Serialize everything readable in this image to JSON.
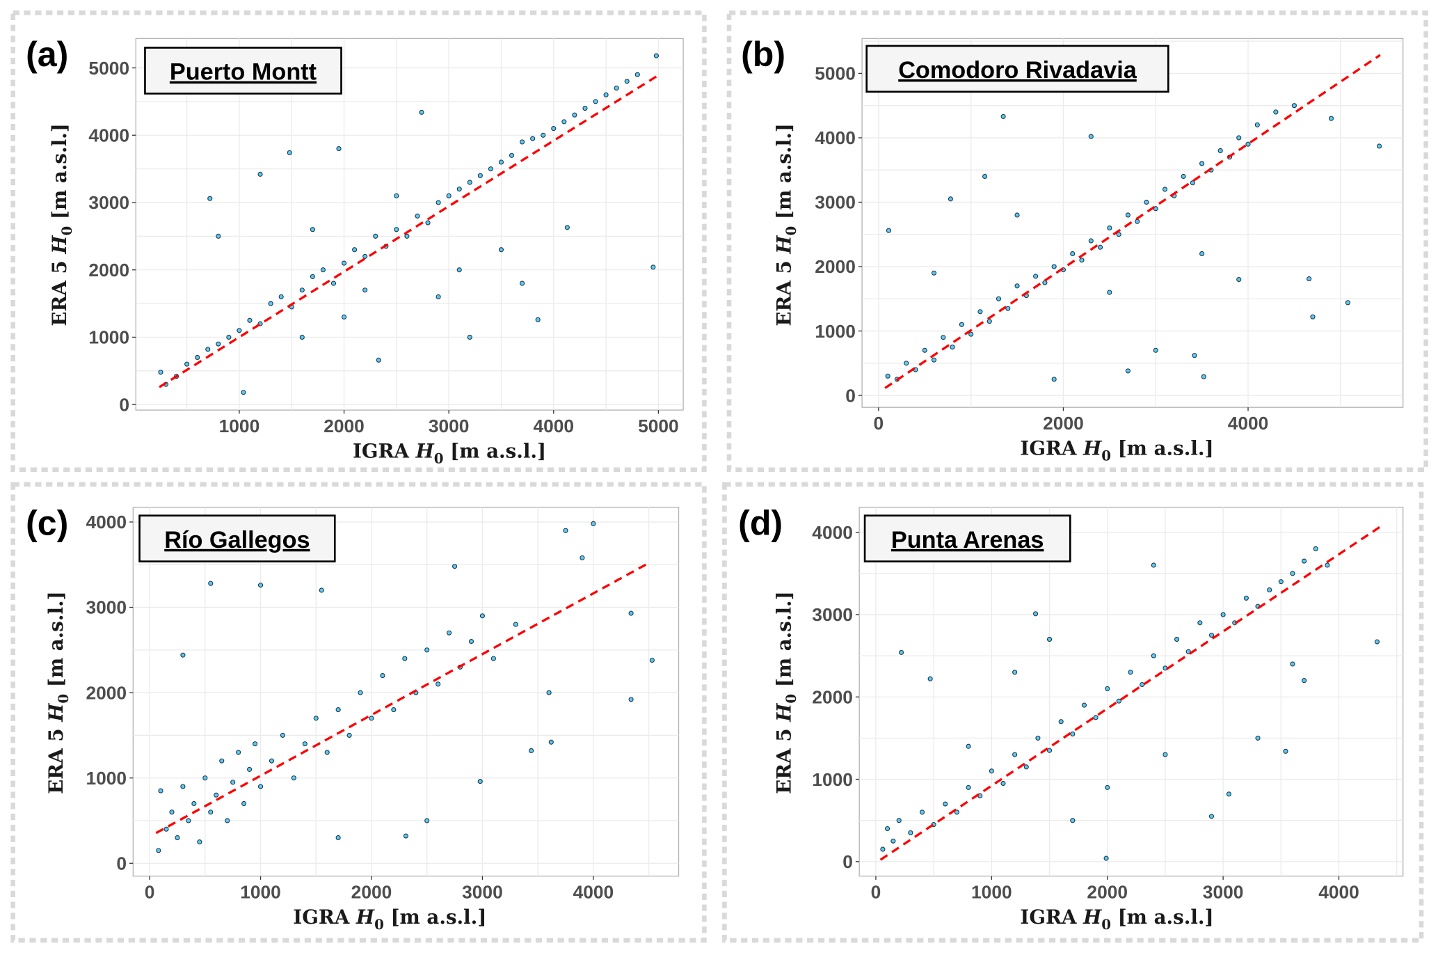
{
  "chart_data": [
    {
      "type": "scatter",
      "panel_label": "(a)",
      "title": "Puerto Montt",
      "xlabel": {
        "prefix": "IGRA ",
        "var": "H",
        "sub": "0",
        "unit": " [m a.s.l.]"
      },
      "ylabel": {
        "prefix": "ERA 5 ",
        "var": "H",
        "sub": "0",
        "unit": " [m a.s.l.]"
      },
      "xlim": [
        13,
        5237
      ],
      "ylim": [
        -82,
        5436
      ],
      "xticks": [
        1000,
        2000,
        3000,
        4000,
        5000
      ],
      "yticks": [
        0,
        1000,
        2000,
        3000,
        4000,
        5000
      ],
      "grid": true,
      "fit_line": {
        "x": [
          237,
          5000
        ],
        "y": [
          259,
          4891
        ],
        "color": "#ff0000",
        "style": "dashed"
      },
      "points": [
        [
          250,
          480
        ],
        [
          300,
          300
        ],
        [
          400,
          420
        ],
        [
          500,
          600
        ],
        [
          600,
          700
        ],
        [
          700,
          820
        ],
        [
          800,
          900
        ],
        [
          900,
          1000
        ],
        [
          1000,
          1100
        ],
        [
          1100,
          1250
        ],
        [
          1200,
          1200
        ],
        [
          1300,
          1500
        ],
        [
          1400,
          1600
        ],
        [
          1500,
          1450
        ],
        [
          1600,
          1700
        ],
        [
          1700,
          1900
        ],
        [
          1800,
          2000
        ],
        [
          1900,
          1800
        ],
        [
          2000,
          2100
        ],
        [
          2100,
          2300
        ],
        [
          2200,
          2200
        ],
        [
          2300,
          2500
        ],
        [
          2400,
          2350
        ],
        [
          2500,
          2600
        ],
        [
          2600,
          2500
        ],
        [
          2700,
          2800
        ],
        [
          2800,
          2700
        ],
        [
          2900,
          3000
        ],
        [
          3000,
          3100
        ],
        [
          3100,
          3200
        ],
        [
          3200,
          3300
        ],
        [
          3300,
          3400
        ],
        [
          3400,
          3500
        ],
        [
          3500,
          3600
        ],
        [
          3600,
          3700
        ],
        [
          3700,
          3900
        ],
        [
          3800,
          3950
        ],
        [
          3900,
          4000
        ],
        [
          4000,
          4100
        ],
        [
          4100,
          4200
        ],
        [
          4200,
          4300
        ],
        [
          4300,
          4400
        ],
        [
          4400,
          4500
        ],
        [
          4500,
          4600
        ],
        [
          4600,
          4700
        ],
        [
          4700,
          4800
        ],
        [
          4800,
          4900
        ],
        [
          4950,
          2040
        ],
        [
          4980,
          5180
        ],
        [
          2740,
          4340
        ],
        [
          720,
          3060
        ],
        [
          1040,
          180
        ],
        [
          3850,
          1260
        ],
        [
          4130,
          2630
        ],
        [
          1480,
          3740
        ],
        [
          1950,
          3800
        ],
        [
          2330,
          660
        ],
        [
          3200,
          1000
        ],
        [
          3500,
          2300
        ],
        [
          2900,
          1600
        ],
        [
          1200,
          3420
        ],
        [
          800,
          2500
        ],
        [
          1600,
          1000
        ],
        [
          2000,
          1300
        ],
        [
          3100,
          2000
        ],
        [
          3700,
          1800
        ],
        [
          2500,
          3100
        ],
        [
          1700,
          2600
        ],
        [
          2200,
          1700
        ]
      ],
      "marker_color": "#5bc8f5",
      "marker_edge": "#1a3340"
    },
    {
      "type": "scatter",
      "panel_label": "(b)",
      "title": "Comodoro Rivadavia",
      "xlabel": {
        "prefix": "IGRA ",
        "var": "H",
        "sub": "0",
        "unit": " [m a.s.l.]"
      },
      "ylabel": {
        "prefix": "ERA 5 ",
        "var": "H",
        "sub": "0",
        "unit": " [m a.s.l.]"
      },
      "xlim": [
        -179,
        5677
      ],
      "ylim": [
        -185,
        5541
      ],
      "xticks": [
        0,
        2000,
        4000
      ],
      "yticks": [
        0,
        1000,
        2000,
        3000,
        4000,
        5000
      ],
      "grid": true,
      "fit_line": {
        "x": [
          70,
          5430
        ],
        "y": [
          114,
          5285
        ],
        "color": "#ff0000",
        "style": "dashed"
      },
      "points": [
        [
          100,
          300
        ],
        [
          200,
          250
        ],
        [
          300,
          500
        ],
        [
          400,
          400
        ],
        [
          500,
          700
        ],
        [
          600,
          550
        ],
        [
          700,
          900
        ],
        [
          800,
          750
        ],
        [
          900,
          1100
        ],
        [
          1000,
          950
        ],
        [
          1100,
          1300
        ],
        [
          1200,
          1150
        ],
        [
          1300,
          1500
        ],
        [
          1400,
          1350
        ],
        [
          1500,
          1700
        ],
        [
          1600,
          1550
        ],
        [
          1700,
          1850
        ],
        [
          1800,
          1750
        ],
        [
          1900,
          2000
        ],
        [
          2000,
          1950
        ],
        [
          2100,
          2200
        ],
        [
          2200,
          2100
        ],
        [
          2300,
          2400
        ],
        [
          2400,
          2300
        ],
        [
          2500,
          2600
        ],
        [
          2600,
          2500
        ],
        [
          2700,
          2800
        ],
        [
          2800,
          2700
        ],
        [
          2900,
          3000
        ],
        [
          3000,
          2900
        ],
        [
          3100,
          3200
        ],
        [
          3200,
          3100
        ],
        [
          3300,
          3400
        ],
        [
          3400,
          3300
        ],
        [
          3500,
          3600
        ],
        [
          3600,
          3500
        ],
        [
          3700,
          3800
        ],
        [
          3800,
          3700
        ],
        [
          3900,
          4000
        ],
        [
          4000,
          3900
        ],
        [
          4100,
          4200
        ],
        [
          4300,
          4400
        ],
        [
          4500,
          4500
        ],
        [
          5420,
          3870
        ],
        [
          5080,
          1440
        ],
        [
          4700,
          1220
        ],
        [
          4660,
          1810
        ],
        [
          1350,
          4330
        ],
        [
          110,
          2560
        ],
        [
          3520,
          290
        ],
        [
          3420,
          620
        ],
        [
          780,
          3050
        ],
        [
          1150,
          3400
        ],
        [
          2300,
          4020
        ],
        [
          3000,
          700
        ],
        [
          2700,
          380
        ],
        [
          1900,
          250
        ],
        [
          4900,
          4300
        ],
        [
          600,
          1900
        ],
        [
          1500,
          2800
        ],
        [
          2500,
          1600
        ],
        [
          3500,
          2200
        ],
        [
          3900,
          1800
        ]
      ],
      "marker_color": "#5bc8f5",
      "marker_edge": "#1a3340"
    },
    {
      "type": "scatter",
      "panel_label": "(c)",
      "title": "Río Gallegos",
      "xlabel": {
        "prefix": "IGRA ",
        "var": "H",
        "sub": "0",
        "unit": " [m a.s.l.]"
      },
      "ylabel": {
        "prefix": "ERA 5 ",
        "var": "H",
        "sub": "0",
        "unit": " [m a.s.l.]"
      },
      "xlim": [
        -149,
        4769
      ],
      "ylim": [
        -150,
        4172
      ],
      "xticks": [
        0,
        1000,
        2000,
        3000,
        4000
      ],
      "yticks": [
        0,
        1000,
        2000,
        3000,
        4000
      ],
      "grid": true,
      "fit_line": {
        "x": [
          58,
          4479
        ],
        "y": [
          355,
          3505
        ],
        "color": "#ff0000",
        "style": "dashed"
      },
      "points": [
        [
          80,
          150
        ],
        [
          100,
          850
        ],
        [
          150,
          400
        ],
        [
          200,
          600
        ],
        [
          250,
          300
        ],
        [
          300,
          900
        ],
        [
          350,
          500
        ],
        [
          400,
          700
        ],
        [
          450,
          250
        ],
        [
          500,
          1000
        ],
        [
          550,
          600
        ],
        [
          600,
          800
        ],
        [
          650,
          1200
        ],
        [
          700,
          500
        ],
        [
          750,
          950
        ],
        [
          800,
          1300
        ],
        [
          850,
          700
        ],
        [
          900,
          1100
        ],
        [
          950,
          1400
        ],
        [
          1000,
          900
        ],
        [
          1100,
          1200
        ],
        [
          1200,
          1500
        ],
        [
          1300,
          1000
        ],
        [
          1400,
          1400
        ],
        [
          1500,
          1700
        ],
        [
          1600,
          1300
        ],
        [
          1700,
          1800
        ],
        [
          1800,
          1500
        ],
        [
          1900,
          2000
        ],
        [
          2000,
          1700
        ],
        [
          2100,
          2200
        ],
        [
          2200,
          1800
        ],
        [
          2300,
          2400
        ],
        [
          2400,
          2000
        ],
        [
          2500,
          2500
        ],
        [
          2600,
          2100
        ],
        [
          2700,
          2700
        ],
        [
          2800,
          2300
        ],
        [
          2900,
          2600
        ],
        [
          3000,
          2900
        ],
        [
          3100,
          2400
        ],
        [
          3300,
          2800
        ],
        [
          4530,
          2380
        ],
        [
          4340,
          2930
        ],
        [
          4340,
          1920
        ],
        [
          4000,
          3980
        ],
        [
          3620,
          1420
        ],
        [
          3440,
          1320
        ],
        [
          550,
          3280
        ],
        [
          1000,
          3260
        ],
        [
          2980,
          960
        ],
        [
          2310,
          320
        ],
        [
          3750,
          3900
        ],
        [
          3900,
          3580
        ],
        [
          2750,
          3480
        ],
        [
          1550,
          3200
        ],
        [
          300,
          2440
        ],
        [
          2500,
          500
        ],
        [
          1700,
          300
        ],
        [
          3600,
          2000
        ]
      ],
      "marker_color": "#5bc8f5",
      "marker_edge": "#1a3340"
    },
    {
      "type": "scatter",
      "panel_label": "(d)",
      "title": "Punta Arenas",
      "xlabel": {
        "prefix": "IGRA ",
        "var": "H",
        "sub": "0",
        "unit": " [m a.s.l.]"
      },
      "ylabel": {
        "prefix": "ERA 5 ",
        "var": "H",
        "sub": "0",
        "unit": " [m a.s.l.]"
      },
      "xlim": [
        -143,
        4554
      ],
      "ylim": [
        -176,
        4303
      ],
      "xticks": [
        0,
        1000,
        2000,
        3000,
        4000
      ],
      "yticks": [
        0,
        1000,
        2000,
        3000,
        4000
      ],
      "grid": true,
      "fit_line": {
        "x": [
          40,
          4356
        ],
        "y": [
          22,
          4066
        ],
        "color": "#ff0000",
        "style": "dashed"
      },
      "points": [
        [
          60,
          150
        ],
        [
          100,
          400
        ],
        [
          150,
          250
        ],
        [
          200,
          500
        ],
        [
          300,
          350
        ],
        [
          400,
          600
        ],
        [
          500,
          450
        ],
        [
          600,
          700
        ],
        [
          700,
          600
        ],
        [
          800,
          900
        ],
        [
          900,
          800
        ],
        [
          1000,
          1100
        ],
        [
          1100,
          950
        ],
        [
          1200,
          1300
        ],
        [
          1300,
          1150
        ],
        [
          1400,
          1500
        ],
        [
          1500,
          1350
        ],
        [
          1600,
          1700
        ],
        [
          1700,
          1550
        ],
        [
          1800,
          1900
        ],
        [
          1900,
          1750
        ],
        [
          2000,
          2100
        ],
        [
          2100,
          1950
        ],
        [
          2200,
          2300
        ],
        [
          2300,
          2150
        ],
        [
          2400,
          2500
        ],
        [
          2500,
          2350
        ],
        [
          2600,
          2700
        ],
        [
          2700,
          2550
        ],
        [
          2800,
          2900
        ],
        [
          2900,
          2750
        ],
        [
          3000,
          3000
        ],
        [
          3100,
          2900
        ],
        [
          3200,
          3200
        ],
        [
          3300,
          3100
        ],
        [
          3400,
          3300
        ],
        [
          3500,
          3400
        ],
        [
          3600,
          3500
        ],
        [
          3700,
          3650
        ],
        [
          3800,
          3800
        ],
        [
          3900,
          3600
        ],
        [
          4330,
          2670
        ],
        [
          3540,
          1340
        ],
        [
          3700,
          2200
        ],
        [
          220,
          2540
        ],
        [
          470,
          2220
        ],
        [
          2400,
          3600
        ],
        [
          1380,
          3010
        ],
        [
          1990,
          40
        ],
        [
          3600,
          2400
        ],
        [
          2900,
          550
        ],
        [
          3050,
          820
        ],
        [
          1200,
          2300
        ],
        [
          1700,
          500
        ],
        [
          2500,
          1300
        ],
        [
          3300,
          1500
        ],
        [
          800,
          1400
        ],
        [
          1500,
          2700
        ],
        [
          2000,
          900
        ]
      ],
      "marker_color": "#5bc8f5",
      "marker_edge": "#1a3340"
    }
  ]
}
